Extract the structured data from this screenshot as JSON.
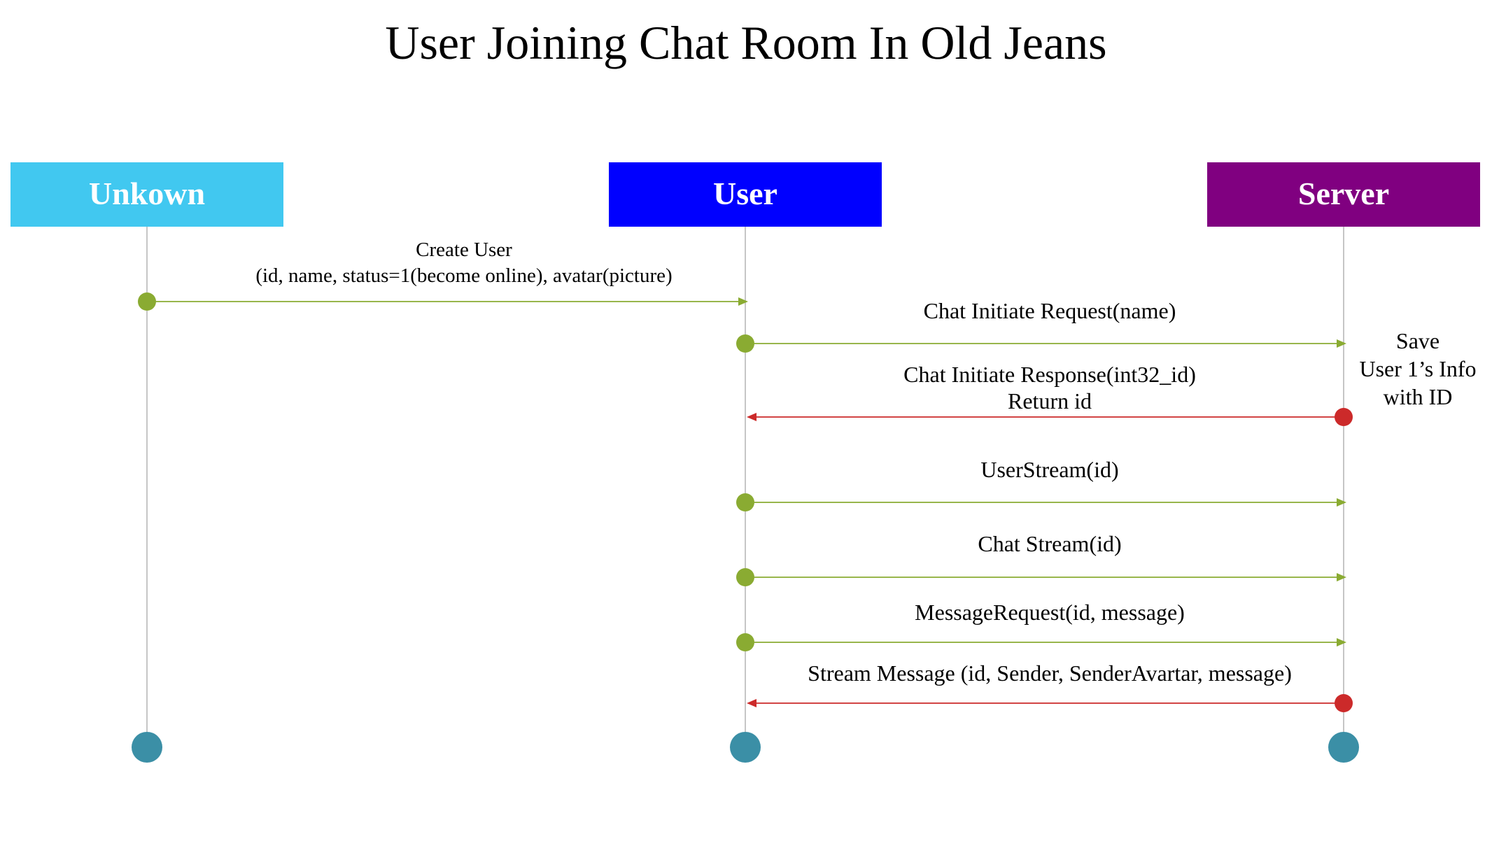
{
  "title": "User Joining Chat Room In Old Jeans",
  "colors": {
    "send": "#8aab32",
    "reply": "#cc2a2a",
    "lifeline": "#b8b8b8",
    "terminal": "#3b8fa6",
    "title": "#000000"
  },
  "actors": [
    {
      "id": "unknown",
      "label": "Unkown",
      "color": "#41c8f0"
    },
    {
      "id": "user",
      "label": "User",
      "color": "#0000ff"
    },
    {
      "id": "server",
      "label": "Server",
      "color": "#800080"
    }
  ],
  "messages": [
    {
      "from": "unknown",
      "to": "user",
      "kind": "send",
      "lines": [
        "Create User",
        "(id, name, status=1(become online), avatar(picture)"
      ]
    },
    {
      "from": "user",
      "to": "server",
      "kind": "send",
      "lines": [
        "Chat Initiate Request(name)"
      ]
    },
    {
      "from": "server",
      "to": "user",
      "kind": "reply",
      "lines": [
        "Chat Initiate Response(int32_id)",
        "Return id"
      ]
    },
    {
      "from": "user",
      "to": "server",
      "kind": "send",
      "lines": [
        "UserStream(id)"
      ]
    },
    {
      "from": "user",
      "to": "server",
      "kind": "send",
      "lines": [
        "Chat Stream(id)"
      ]
    },
    {
      "from": "user",
      "to": "server",
      "kind": "send",
      "lines": [
        "MessageRequest(id, message)"
      ]
    },
    {
      "from": "server",
      "to": "user",
      "kind": "reply",
      "lines": [
        "Stream Message (id, Sender, SenderAvartar, message)"
      ]
    }
  ],
  "note": {
    "actor": "server",
    "lines": [
      "Save",
      "User 1’s Info",
      "with ID"
    ]
  }
}
